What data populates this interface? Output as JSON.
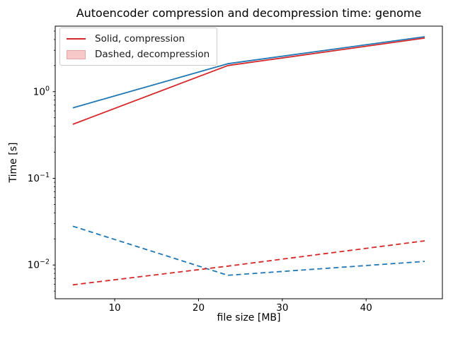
{
  "figure": {
    "title": "Autoencoder compression and decompression time: genome",
    "xlabel": "file size [MB]",
    "ylabel": "Time [s]"
  },
  "chart_data": {
    "type": "line",
    "title": "Autoencoder compression and decompression time: genome",
    "xlabel": "file size [MB]",
    "ylabel": "Time [s]",
    "x_scale": "linear",
    "y_scale": "log",
    "xlim": [
      2.9,
      49.1
    ],
    "ylim": [
      0.00408,
      5.7
    ],
    "x_ticks": [
      10,
      20,
      30,
      40
    ],
    "y_ticks": [
      {
        "value": 1,
        "base": "10",
        "exp": "0"
      },
      {
        "value": 0.1,
        "base": "10",
        "exp": "−1"
      },
      {
        "value": 0.01,
        "base": "10",
        "exp": "−2"
      }
    ],
    "grid": false,
    "x": [
      5,
      23.5,
      47
    ],
    "series": [
      {
        "name": "compression-blue",
        "style": "solid",
        "color": "#1f77b4",
        "values": [
          0.65,
          2.1,
          4.3
        ]
      },
      {
        "name": "compression-red",
        "style": "solid",
        "color": "#d62728",
        "values": [
          0.42,
          2.0,
          4.15
        ]
      },
      {
        "name": "decompression-blue",
        "style": "dashed",
        "color": "#1f77b4",
        "values": [
          0.028,
          0.0076,
          0.011
        ]
      },
      {
        "name": "decompression-red",
        "style": "dashed",
        "color": "#d62728",
        "values": [
          0.0059,
          0.0097,
          0.019
        ]
      }
    ],
    "legend": {
      "position": "upper-left",
      "items": [
        {
          "label": "Solid, compression",
          "swatch": "line",
          "color": "#d62728"
        },
        {
          "label": "Dashed, decompression",
          "swatch": "patch",
          "fill": "#f7c8c8",
          "edge": "#e3a5a5"
        }
      ]
    }
  },
  "colors": {
    "background": "#ffffff",
    "spine": "#000000",
    "tick_text": "#000000",
    "blue_line": "#1f77b4",
    "red_line": "#d62728"
  }
}
